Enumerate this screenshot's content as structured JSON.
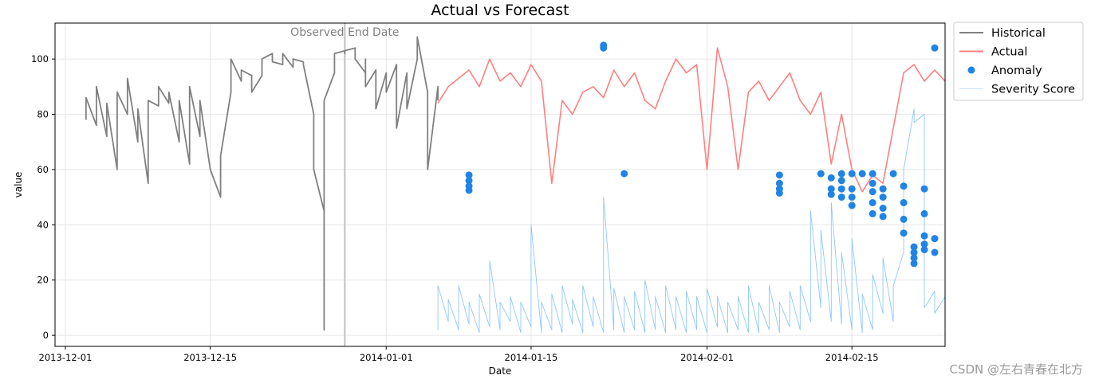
{
  "chart_data": {
    "type": "line",
    "title": "Actual vs Forecast",
    "xlabel": "Date",
    "ylabel": "value",
    "x_range": [
      "2013-11-30",
      "2014-02-24"
    ],
    "ylim": [
      -4,
      113
    ],
    "x_ticks": [
      "2013-12-01",
      "2013-12-15",
      "2014-01-01",
      "2014-01-15",
      "2014-02-01",
      "2014-02-15"
    ],
    "y_ticks": [
      0,
      20,
      40,
      60,
      80,
      100
    ],
    "grid": true,
    "legend_position": "outside-top-right",
    "annotation": {
      "text": "Observed End Date",
      "date": "2013-12-28"
    },
    "series": [
      {
        "name": "Historical",
        "kind": "line",
        "color": "#808080",
        "points": [
          [
            "2013-12-03",
            78
          ],
          [
            "2013-12-03",
            86
          ],
          [
            "2013-12-04",
            76
          ],
          [
            "2013-12-04",
            90
          ],
          [
            "2013-12-05",
            72
          ],
          [
            "2013-12-05",
            84
          ],
          [
            "2013-12-06",
            60
          ],
          [
            "2013-12-06",
            88
          ],
          [
            "2013-12-07",
            80
          ],
          [
            "2013-12-07",
            93
          ],
          [
            "2013-12-08",
            70
          ],
          [
            "2013-12-08",
            82
          ],
          [
            "2013-12-09",
            55
          ],
          [
            "2013-12-09",
            85
          ],
          [
            "2013-12-10",
            83
          ],
          [
            "2013-12-10",
            90
          ],
          [
            "2013-12-11",
            84
          ],
          [
            "2013-12-11",
            88
          ],
          [
            "2013-12-12",
            70
          ],
          [
            "2013-12-12",
            85
          ],
          [
            "2013-12-13",
            62
          ],
          [
            "2013-12-13",
            90
          ],
          [
            "2013-12-14",
            72
          ],
          [
            "2013-12-14",
            85
          ],
          [
            "2013-12-15",
            60
          ],
          [
            "2013-12-16",
            50
          ],
          [
            "2013-12-16",
            65
          ],
          [
            "2013-12-17",
            88
          ],
          [
            "2013-12-17",
            100
          ],
          [
            "2013-12-18",
            92
          ],
          [
            "2013-12-18",
            96
          ],
          [
            "2013-12-19",
            94
          ],
          [
            "2013-12-19",
            88
          ],
          [
            "2013-12-20",
            94
          ],
          [
            "2013-12-20",
            100
          ],
          [
            "2013-12-21",
            102
          ],
          [
            "2013-12-21",
            99
          ],
          [
            "2013-12-22",
            98
          ],
          [
            "2013-12-22",
            102
          ],
          [
            "2013-12-23",
            97
          ],
          [
            "2013-12-23",
            100
          ],
          [
            "2013-12-24",
            99
          ],
          [
            "2013-12-24",
            98
          ],
          [
            "2013-12-25",
            80
          ],
          [
            "2013-12-25",
            60
          ],
          [
            "2013-12-26",
            45
          ],
          [
            "2013-12-26",
            2
          ],
          [
            "2013-12-26",
            40
          ],
          [
            "2013-12-26",
            85
          ],
          [
            "2013-12-27",
            95
          ],
          [
            "2013-12-27",
            102
          ],
          [
            "2013-12-28",
            103
          ],
          [
            "2013-12-28",
            102
          ],
          [
            "2013-12-28",
            103
          ],
          [
            "2013-12-29",
            104
          ],
          [
            "2013-12-29",
            100
          ],
          [
            "2013-12-30",
            95
          ],
          [
            "2013-12-30",
            100
          ],
          [
            "2013-12-30",
            90
          ],
          [
            "2013-12-31",
            96
          ],
          [
            "2013-12-31",
            82
          ],
          [
            "2014-01-01",
            95
          ],
          [
            "2014-01-01",
            88
          ],
          [
            "2014-01-02",
            98
          ],
          [
            "2014-01-02",
            75
          ],
          [
            "2014-01-03",
            95
          ],
          [
            "2014-01-03",
            82
          ],
          [
            "2014-01-04",
            100
          ],
          [
            "2014-01-04",
            108
          ],
          [
            "2014-01-05",
            88
          ],
          [
            "2014-01-05",
            60
          ],
          [
            "2014-01-06",
            90
          ],
          [
            "2014-01-06",
            85
          ]
        ]
      },
      {
        "name": "Actual",
        "kind": "line",
        "color": "#ff7f7f",
        "points": [
          [
            "2014-01-06",
            84
          ],
          [
            "2014-01-07",
            90
          ],
          [
            "2014-01-08",
            93
          ],
          [
            "2014-01-09",
            96
          ],
          [
            "2014-01-10",
            90
          ],
          [
            "2014-01-11",
            100
          ],
          [
            "2014-01-12",
            92
          ],
          [
            "2014-01-13",
            95
          ],
          [
            "2014-01-14",
            90
          ],
          [
            "2014-01-15",
            98
          ],
          [
            "2014-01-16",
            92
          ],
          [
            "2014-01-17",
            55
          ],
          [
            "2014-01-18",
            85
          ],
          [
            "2014-01-19",
            80
          ],
          [
            "2014-01-20",
            88
          ],
          [
            "2014-01-21",
            90
          ],
          [
            "2014-01-22",
            86
          ],
          [
            "2014-01-23",
            96
          ],
          [
            "2014-01-24",
            90
          ],
          [
            "2014-01-25",
            95
          ],
          [
            "2014-01-26",
            85
          ],
          [
            "2014-01-27",
            82
          ],
          [
            "2014-01-28",
            92
          ],
          [
            "2014-01-29",
            100
          ],
          [
            "2014-01-30",
            95
          ],
          [
            "2014-01-31",
            98
          ],
          [
            "2014-02-01",
            60
          ],
          [
            "2014-02-02",
            104
          ],
          [
            "2014-02-03",
            90
          ],
          [
            "2014-02-04",
            60
          ],
          [
            "2014-02-05",
            88
          ],
          [
            "2014-02-06",
            92
          ],
          [
            "2014-02-07",
            85
          ],
          [
            "2014-02-08",
            90
          ],
          [
            "2014-02-09",
            95
          ],
          [
            "2014-02-10",
            85
          ],
          [
            "2014-02-11",
            80
          ],
          [
            "2014-02-12",
            88
          ],
          [
            "2014-02-13",
            62
          ],
          [
            "2014-02-14",
            80
          ],
          [
            "2014-02-15",
            60
          ],
          [
            "2014-02-16",
            52
          ],
          [
            "2014-02-17",
            58
          ],
          [
            "2014-02-18",
            55
          ],
          [
            "2014-02-19",
            75
          ],
          [
            "2014-02-20",
            95
          ],
          [
            "2014-02-21",
            98
          ],
          [
            "2014-02-22",
            92
          ],
          [
            "2014-02-23",
            96
          ],
          [
            "2014-02-24",
            92
          ]
        ]
      },
      {
        "name": "Anomaly",
        "kind": "scatter",
        "color": "#1f84e6",
        "points": [
          [
            "2014-01-09",
            58
          ],
          [
            "2014-01-09",
            56
          ],
          [
            "2014-01-09",
            54
          ],
          [
            "2014-01-09",
            52.5
          ],
          [
            "2014-01-22",
            105
          ],
          [
            "2014-01-22",
            104
          ],
          [
            "2014-01-24",
            58.5
          ],
          [
            "2014-02-08",
            58
          ],
          [
            "2014-02-08",
            55
          ],
          [
            "2014-02-08",
            53
          ],
          [
            "2014-02-08",
            51.5
          ],
          [
            "2014-02-12",
            58.5
          ],
          [
            "2014-02-13",
            57
          ],
          [
            "2014-02-13",
            53
          ],
          [
            "2014-02-13",
            51
          ],
          [
            "2014-02-14",
            58.5
          ],
          [
            "2014-02-14",
            56
          ],
          [
            "2014-02-14",
            53
          ],
          [
            "2014-02-14",
            50
          ],
          [
            "2014-02-15",
            58.5
          ],
          [
            "2014-02-15",
            53
          ],
          [
            "2014-02-15",
            50
          ],
          [
            "2014-02-15",
            47
          ],
          [
            "2014-02-16",
            58.5
          ],
          [
            "2014-02-17",
            58.5
          ],
          [
            "2014-02-17",
            55
          ],
          [
            "2014-02-17",
            52
          ],
          [
            "2014-02-17",
            48
          ],
          [
            "2014-02-17",
            44
          ],
          [
            "2014-02-18",
            53
          ],
          [
            "2014-02-18",
            50
          ],
          [
            "2014-02-18",
            46
          ],
          [
            "2014-02-18",
            43
          ],
          [
            "2014-02-19",
            58.5
          ],
          [
            "2014-02-20",
            54
          ],
          [
            "2014-02-20",
            48
          ],
          [
            "2014-02-20",
            42
          ],
          [
            "2014-02-20",
            37
          ],
          [
            "2014-02-21",
            32
          ],
          [
            "2014-02-21",
            28
          ],
          [
            "2014-02-21",
            26
          ],
          [
            "2014-02-21",
            30
          ],
          [
            "2014-02-22",
            36
          ],
          [
            "2014-02-22",
            33
          ],
          [
            "2014-02-22",
            31
          ],
          [
            "2014-02-22",
            44
          ],
          [
            "2014-02-22",
            53
          ],
          [
            "2014-02-23",
            35
          ],
          [
            "2014-02-23",
            30
          ],
          [
            "2014-02-23",
            104
          ]
        ]
      },
      {
        "name": "Severity Score",
        "kind": "line",
        "color": "#84c1fa",
        "points": [
          [
            "2014-01-06",
            2
          ],
          [
            "2014-01-06",
            18
          ],
          [
            "2014-01-07",
            5
          ],
          [
            "2014-01-07",
            13
          ],
          [
            "2014-01-08",
            2
          ],
          [
            "2014-01-08",
            18
          ],
          [
            "2014-01-09",
            4
          ],
          [
            "2014-01-09",
            12
          ],
          [
            "2014-01-10",
            1
          ],
          [
            "2014-01-10",
            15
          ],
          [
            "2014-01-11",
            3
          ],
          [
            "2014-01-11",
            27
          ],
          [
            "2014-01-12",
            2
          ],
          [
            "2014-01-12",
            12
          ],
          [
            "2014-01-13",
            5
          ],
          [
            "2014-01-13",
            14
          ],
          [
            "2014-01-14",
            1
          ],
          [
            "2014-01-14",
            12
          ],
          [
            "2014-01-15",
            3
          ],
          [
            "2014-01-15",
            40
          ],
          [
            "2014-01-16",
            1
          ],
          [
            "2014-01-16",
            12
          ],
          [
            "2014-01-17",
            2
          ],
          [
            "2014-01-17",
            15
          ],
          [
            "2014-01-18",
            1
          ],
          [
            "2014-01-18",
            18
          ],
          [
            "2014-01-19",
            4
          ],
          [
            "2014-01-19",
            13
          ],
          [
            "2014-01-20",
            1
          ],
          [
            "2014-01-20",
            18
          ],
          [
            "2014-01-21",
            3
          ],
          [
            "2014-01-21",
            14
          ],
          [
            "2014-01-22",
            1
          ],
          [
            "2014-01-22",
            50
          ],
          [
            "2014-01-23",
            2
          ],
          [
            "2014-01-23",
            17
          ],
          [
            "2014-01-24",
            1
          ],
          [
            "2014-01-24",
            14
          ],
          [
            "2014-01-25",
            2
          ],
          [
            "2014-01-25",
            16
          ],
          [
            "2014-01-26",
            1
          ],
          [
            "2014-01-26",
            20
          ],
          [
            "2014-01-27",
            2
          ],
          [
            "2014-01-27",
            14
          ],
          [
            "2014-01-28",
            1
          ],
          [
            "2014-01-28",
            18
          ],
          [
            "2014-01-29",
            2
          ],
          [
            "2014-01-29",
            14
          ],
          [
            "2014-01-30",
            1
          ],
          [
            "2014-01-30",
            16
          ],
          [
            "2014-01-31",
            2
          ],
          [
            "2014-01-31",
            14
          ],
          [
            "2014-02-01",
            1
          ],
          [
            "2014-02-01",
            17
          ],
          [
            "2014-02-02",
            3
          ],
          [
            "2014-02-02",
            14
          ],
          [
            "2014-02-03",
            1
          ],
          [
            "2014-02-03",
            12
          ],
          [
            "2014-02-04",
            2
          ],
          [
            "2014-02-04",
            14
          ],
          [
            "2014-02-05",
            1
          ],
          [
            "2014-02-05",
            18
          ],
          [
            "2014-02-06",
            1
          ],
          [
            "2014-02-06",
            12
          ],
          [
            "2014-02-07",
            2
          ],
          [
            "2014-02-07",
            18
          ],
          [
            "2014-02-08",
            1
          ],
          [
            "2014-02-08",
            12
          ],
          [
            "2014-02-09",
            3
          ],
          [
            "2014-02-09",
            16
          ],
          [
            "2014-02-10",
            2
          ],
          [
            "2014-02-10",
            18
          ],
          [
            "2014-02-11",
            5
          ],
          [
            "2014-02-11",
            45
          ],
          [
            "2014-02-12",
            10
          ],
          [
            "2014-02-12",
            38
          ],
          [
            "2014-02-13",
            5
          ],
          [
            "2014-02-13",
            48
          ],
          [
            "2014-02-14",
            4
          ],
          [
            "2014-02-14",
            30
          ],
          [
            "2014-02-15",
            2
          ],
          [
            "2014-02-15",
            35
          ],
          [
            "2014-02-16",
            1
          ],
          [
            "2014-02-16",
            15
          ],
          [
            "2014-02-17",
            2
          ],
          [
            "2014-02-17",
            22
          ],
          [
            "2014-02-18",
            8
          ],
          [
            "2014-02-18",
            28
          ],
          [
            "2014-02-19",
            5
          ],
          [
            "2014-02-19",
            18
          ],
          [
            "2014-02-20",
            30
          ],
          [
            "2014-02-20",
            60
          ],
          [
            "2014-02-21",
            82
          ],
          [
            "2014-02-21",
            77
          ],
          [
            "2014-02-22",
            80
          ],
          [
            "2014-02-22",
            10
          ],
          [
            "2014-02-23",
            16
          ],
          [
            "2014-02-23",
            8
          ],
          [
            "2014-02-24",
            14
          ],
          [
            "2014-02-24",
            8
          ]
        ]
      }
    ]
  },
  "watermark": "CSDN @左右青春在北方"
}
